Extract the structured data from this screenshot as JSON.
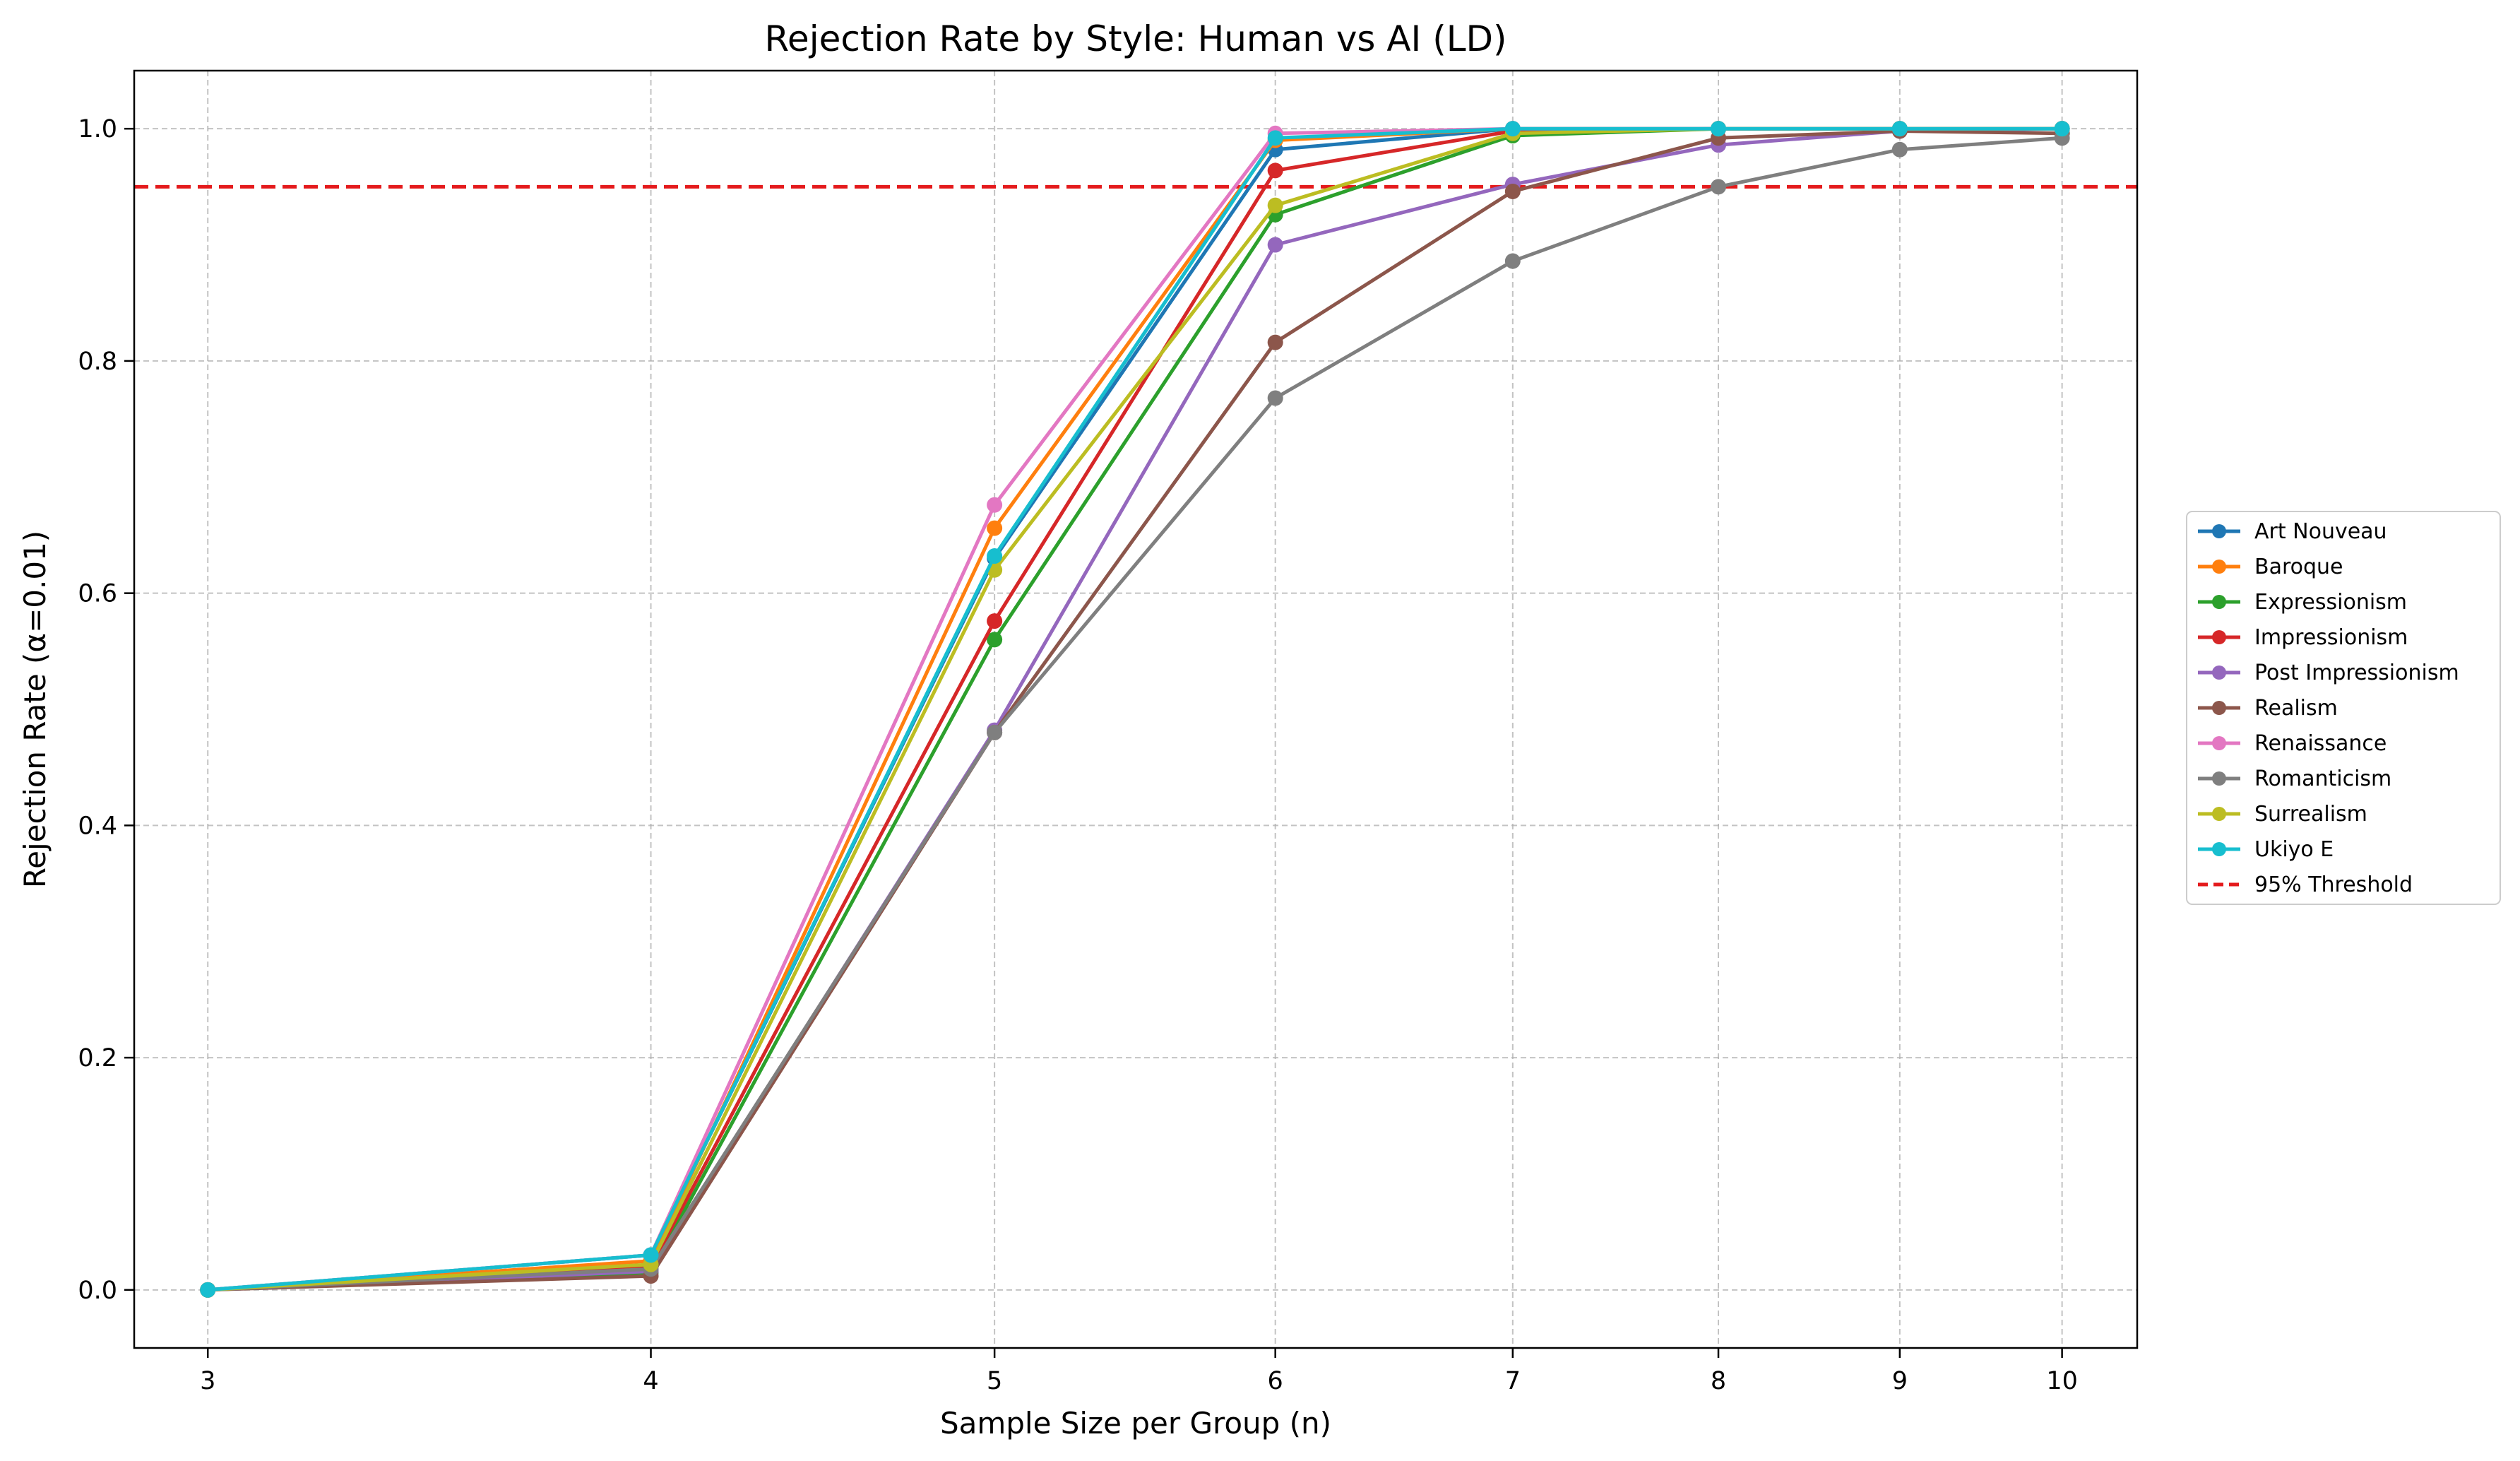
{
  "chart_data": {
    "type": "line",
    "title": "Rejection Rate by Style: Human vs AI (LD)",
    "xlabel": "Sample Size per Group (n)",
    "ylabel": "Rejection Rate (α=0.01)",
    "x": [
      3,
      4,
      5,
      6,
      7,
      8,
      9,
      10
    ],
    "x_ticks": [
      "3",
      "4",
      "5",
      "6",
      "7",
      "8",
      "9",
      "10"
    ],
    "x_scale": "log",
    "xlim": [
      2.86,
      10.5
    ],
    "y_ticks": [
      "0.0",
      "0.2",
      "0.4",
      "0.6",
      "0.8",
      "1.0"
    ],
    "ylim": [
      -0.05,
      1.05
    ],
    "grid": true,
    "legend_position": "outside-right",
    "series": [
      {
        "name": "Art Nouveau",
        "color": "#1f77b4",
        "values": [
          0.0,
          0.03,
          0.63,
          0.982,
          1.0,
          1.0,
          1.0,
          1.0
        ]
      },
      {
        "name": "Baroque",
        "color": "#ff7f0e",
        "values": [
          0.0,
          0.025,
          0.656,
          0.99,
          1.0,
          1.0,
          1.0,
          1.0
        ]
      },
      {
        "name": "Expressionism",
        "color": "#2ca02c",
        "values": [
          0.0,
          0.015,
          0.56,
          0.926,
          0.994,
          1.0,
          1.0,
          1.0
        ]
      },
      {
        "name": "Impressionism",
        "color": "#d62728",
        "values": [
          0.0,
          0.02,
          0.576,
          0.964,
          0.998,
          1.0,
          1.0,
          1.0
        ]
      },
      {
        "name": "Post Impressionism",
        "color": "#9467bd",
        "values": [
          0.0,
          0.016,
          0.482,
          0.9,
          0.952,
          0.986,
          0.998,
          1.0
        ]
      },
      {
        "name": "Realism",
        "color": "#8c564b",
        "values": [
          0.0,
          0.012,
          0.48,
          0.816,
          0.946,
          0.992,
          0.998,
          0.996
        ]
      },
      {
        "name": "Renaissance",
        "color": "#e377c2",
        "values": [
          0.0,
          0.03,
          0.676,
          0.996,
          1.0,
          1.0,
          1.0,
          1.0
        ]
      },
      {
        "name": "Romanticism",
        "color": "#7f7f7f",
        "values": [
          0.0,
          0.018,
          0.48,
          0.768,
          0.886,
          0.95,
          0.982,
          0.992
        ]
      },
      {
        "name": "Surrealism",
        "color": "#bcbd22",
        "values": [
          0.0,
          0.022,
          0.62,
          0.934,
          0.996,
          1.0,
          1.0,
          1.0
        ]
      },
      {
        "name": "Ukiyo E",
        "color": "#17becf",
        "values": [
          0.0,
          0.03,
          0.632,
          0.992,
          1.0,
          1.0,
          1.0,
          1.0
        ]
      }
    ],
    "threshold": {
      "name": "95% Threshold",
      "value": 0.95,
      "color": "#e41a1c",
      "style": "dashed"
    }
  }
}
